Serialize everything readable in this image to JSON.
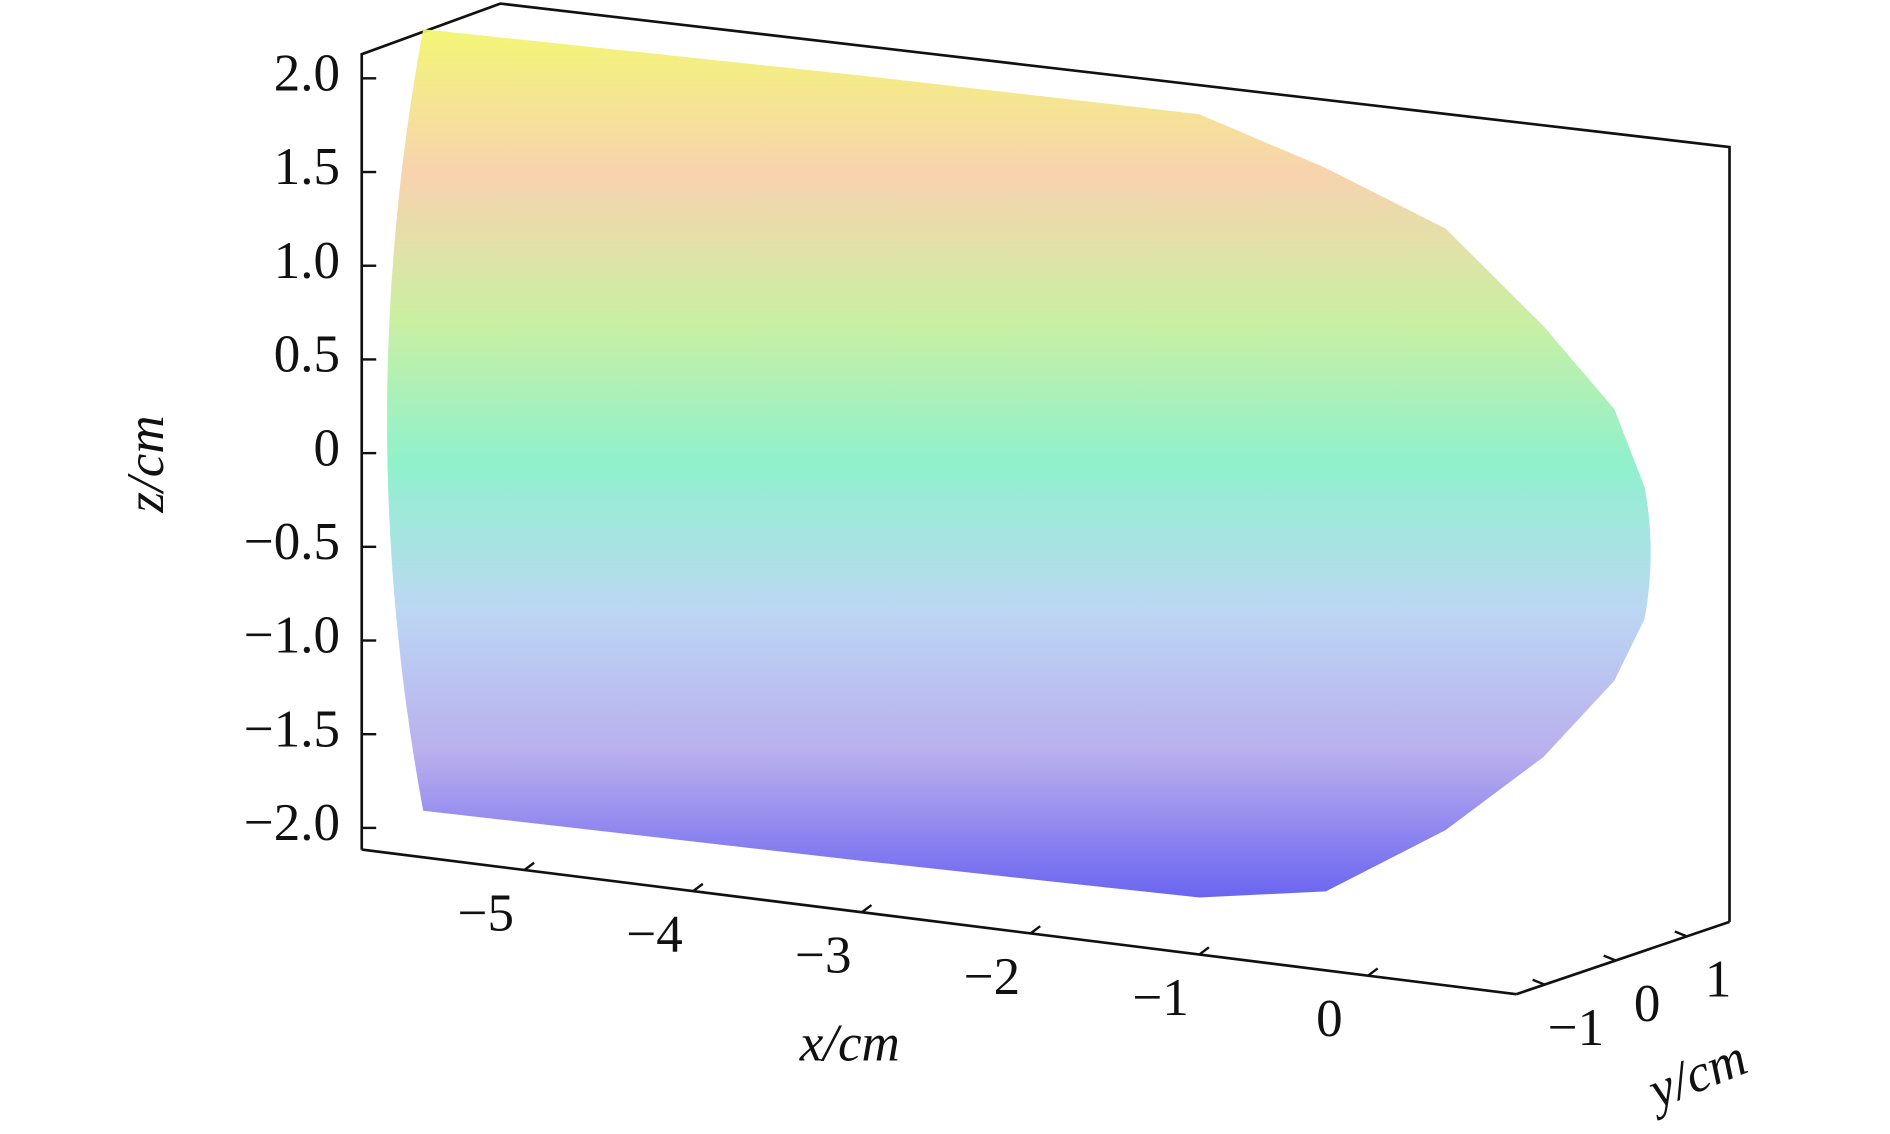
{
  "chart_data": {
    "type": "surface3d",
    "x_label": "x/cm",
    "y_label": "y/cm",
    "z_label": "z/cm",
    "xlim": [
      -5.96,
      0.88
    ],
    "ylim": [
      -1.4,
      1.6
    ],
    "zlim": [
      -2.1,
      2.12
    ],
    "xticks": [
      {
        "value": -5,
        "label": "−5"
      },
      {
        "value": -4,
        "label": "−4"
      },
      {
        "value": -3,
        "label": "−3"
      },
      {
        "value": -2,
        "label": "−2"
      },
      {
        "value": -1,
        "label": "−1"
      },
      0
    ],
    "yticks": [
      {
        "value": -1,
        "label": "−1"
      },
      0,
      1
    ],
    "zticks": [
      {
        "value": 2,
        "label": "2.0"
      },
      1.5,
      {
        "value": 1,
        "label": "1.0"
      },
      0.5,
      0,
      {
        "value": -0.5,
        "label": "−0.5"
      },
      {
        "value": -1,
        "label": "−1.0"
      },
      {
        "value": -1.5,
        "label": "−1.5"
      },
      {
        "value": -2,
        "label": "−2.0"
      }
    ],
    "surface": {
      "x": [
        -5.6,
        -3,
        -1,
        -0.25,
        0.46,
        1.04,
        1.46,
        1.64
      ],
      "z_upper": [
        2.2,
        2.22,
        2.22,
        2.01,
        1.76,
        1.3,
        0.9,
        0.5
      ],
      "z_lower": [
        -1.97,
        -1.97,
        -1.96,
        -1.85,
        -1.45,
        -1.0,
        -0.55,
        -0.2
      ]
    },
    "colors": [
      "#f2f56a",
      "#f7cfa8",
      "#c6ee9a",
      "#86f0c8",
      "#b6d4f2",
      "#b4a8ec",
      "#5e58f0"
    ]
  }
}
